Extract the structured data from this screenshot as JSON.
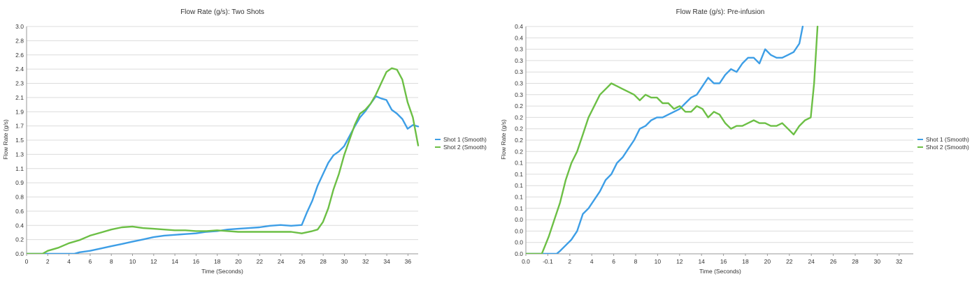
{
  "chart_data": [
    {
      "type": "line",
      "title": "Flow Rate (g/s): Two Shots",
      "xlabel": "Time (Seconds)",
      "ylabel": "Flow Rate (g/s)",
      "xlim": [
        0,
        37
      ],
      "ylim": [
        0,
        3.0
      ],
      "x_ticks": [
        "0",
        "2",
        "4",
        "6",
        "8",
        "10",
        "12",
        "14",
        "16",
        "18",
        "20",
        "22",
        "24",
        "26",
        "28",
        "30",
        "32",
        "34",
        "36"
      ],
      "y_ticks": [
        "0.0",
        "0.2",
        "0.4",
        "0.6",
        "0.8",
        "0.9",
        "1.1",
        "1.3",
        "1.5",
        "1.7",
        "1.9",
        "2.1",
        "2.3",
        "2.4",
        "2.6",
        "2.8",
        "3.0"
      ],
      "grid": true,
      "legend_position": "right",
      "series": [
        {
          "name": "Shot 1 (Smooth)",
          "color": "#3d9ee6",
          "x": [
            0,
            4.5,
            5,
            6,
            7,
            8,
            9,
            10,
            11,
            12,
            13,
            14,
            15,
            16,
            17,
            18,
            19,
            20,
            21,
            22,
            23,
            24,
            25,
            26,
            26.5,
            27,
            27.5,
            28,
            28.5,
            29,
            29.5,
            30,
            30.5,
            31,
            31.5,
            32,
            32.5,
            33,
            33.5,
            34,
            34.5,
            35,
            35.5,
            36,
            36.5,
            37
          ],
          "y": [
            0,
            0,
            0.02,
            0.04,
            0.07,
            0.1,
            0.13,
            0.16,
            0.19,
            0.22,
            0.24,
            0.25,
            0.26,
            0.27,
            0.29,
            0.3,
            0.32,
            0.33,
            0.34,
            0.35,
            0.37,
            0.38,
            0.37,
            0.38,
            0.55,
            0.7,
            0.9,
            1.05,
            1.2,
            1.3,
            1.35,
            1.42,
            1.55,
            1.68,
            1.8,
            1.88,
            1.98,
            2.08,
            2.05,
            2.03,
            1.9,
            1.85,
            1.78,
            1.65,
            1.7,
            1.68
          ]
        },
        {
          "name": "Shot 2 (Smooth)",
          "color": "#6cbf45",
          "x": [
            0,
            1.5,
            2,
            3,
            4,
            5,
            6,
            7,
            8,
            9,
            10,
            11,
            12,
            13,
            14,
            15,
            16,
            17,
            18,
            19,
            20,
            21,
            22,
            23,
            24,
            25,
            26,
            27,
            27.5,
            28,
            28.5,
            29,
            29.5,
            30,
            30.5,
            31,
            31.5,
            32,
            32.5,
            33,
            33.5,
            34,
            34.5,
            35,
            35.5,
            36,
            36.5,
            37
          ],
          "y": [
            0,
            0,
            0.04,
            0.08,
            0.14,
            0.18,
            0.24,
            0.28,
            0.32,
            0.35,
            0.36,
            0.34,
            0.33,
            0.32,
            0.31,
            0.31,
            0.3,
            0.3,
            0.31,
            0.3,
            0.29,
            0.29,
            0.29,
            0.29,
            0.29,
            0.29,
            0.27,
            0.3,
            0.32,
            0.42,
            0.6,
            0.85,
            1.05,
            1.3,
            1.5,
            1.7,
            1.85,
            1.9,
            1.98,
            2.1,
            2.25,
            2.4,
            2.45,
            2.43,
            2.3,
            2.0,
            1.8,
            1.43
          ]
        }
      ]
    },
    {
      "type": "line",
      "title": "Flow Rate (g/s): Pre-infusion",
      "xlabel": "Time (Seconds)",
      "ylabel": "Flow Rate (g/s)",
      "xlim": [
        0,
        34
      ],
      "ylim": [
        0,
        0.4
      ],
      "x_ticks": [
        "0.0",
        "-0.1",
        "2",
        "4",
        "6",
        "8",
        "10",
        "12",
        "14",
        "16",
        "18",
        "20",
        "22",
        "24",
        "26",
        "28",
        "30",
        "32"
      ],
      "y_ticks": [
        "0.0",
        "0.0",
        "0.0",
        "0.0",
        "0.1",
        "0.1",
        "0.1",
        "0.1",
        "0.1",
        "0.2",
        "0.2",
        "0.2",
        "0.2",
        "0.2",
        "0.3",
        "0.3",
        "0.3",
        "0.3",
        "0.3",
        "0.4",
        "0.4"
      ],
      "grid": true,
      "legend_position": "right",
      "series": [
        {
          "name": "Shot 1 (Smooth)",
          "color": "#3d9ee6",
          "x": [
            0,
            2.7,
            3,
            3.5,
            4,
            4.5,
            5,
            5.5,
            6,
            6.5,
            7,
            7.5,
            8,
            8.5,
            9,
            9.5,
            10,
            10.5,
            11,
            11.5,
            12,
            12.5,
            13,
            13.5,
            14,
            14.5,
            15,
            15.5,
            16,
            16.5,
            17,
            17.5,
            18,
            18.5,
            19,
            19.5,
            20,
            20.5,
            21,
            21.5,
            22,
            22.5,
            23,
            23.5,
            24,
            24.3
          ],
          "y": [
            0,
            0,
            0.005,
            0.015,
            0.025,
            0.04,
            0.07,
            0.08,
            0.095,
            0.11,
            0.13,
            0.14,
            0.16,
            0.17,
            0.185,
            0.2,
            0.22,
            0.225,
            0.235,
            0.24,
            0.24,
            0.245,
            0.25,
            0.255,
            0.265,
            0.275,
            0.28,
            0.295,
            0.31,
            0.3,
            0.3,
            0.315,
            0.325,
            0.32,
            0.335,
            0.345,
            0.345,
            0.335,
            0.36,
            0.35,
            0.345,
            0.345,
            0.35,
            0.355,
            0.37,
            0.4
          ]
        },
        {
          "name": "Shot 2 (Smooth)",
          "color": "#6cbf45",
          "x": [
            0,
            1.4,
            1.7,
            2,
            2.5,
            3,
            3.5,
            4,
            4.5,
            5,
            5.5,
            6,
            6.5,
            7,
            7.5,
            8,
            8.5,
            9,
            9.5,
            10,
            10.5,
            11,
            11.5,
            12,
            12.5,
            13,
            13.5,
            14,
            14.5,
            15,
            15.5,
            16,
            16.5,
            17,
            17.5,
            18,
            18.5,
            19,
            19.5,
            20,
            20.5,
            21,
            21.5,
            22,
            22.5,
            23,
            23.5,
            24,
            24.5,
            25,
            25.3,
            25.6
          ],
          "y": [
            0,
            0,
            0.015,
            0.03,
            0.06,
            0.09,
            0.13,
            0.16,
            0.18,
            0.21,
            0.24,
            0.26,
            0.28,
            0.29,
            0.3,
            0.295,
            0.29,
            0.285,
            0.28,
            0.27,
            0.28,
            0.275,
            0.275,
            0.265,
            0.265,
            0.255,
            0.26,
            0.25,
            0.25,
            0.26,
            0.255,
            0.24,
            0.25,
            0.245,
            0.23,
            0.22,
            0.225,
            0.225,
            0.23,
            0.235,
            0.23,
            0.23,
            0.225,
            0.225,
            0.23,
            0.22,
            0.21,
            0.225,
            0.235,
            0.24,
            0.3,
            0.4
          ]
        }
      ]
    }
  ]
}
